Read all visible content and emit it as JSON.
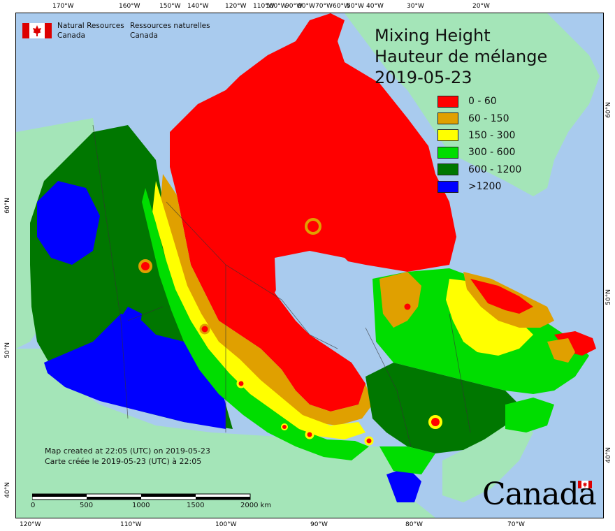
{
  "map": {
    "title_en": "Mixing Height",
    "title_fr": "Hauteur de mélange",
    "date": "2019-05-23",
    "legend": [
      {
        "label": "0 - 60",
        "color": "#ff0000"
      },
      {
        "label": "60 - 150",
        "color": "#e0a000"
      },
      {
        "label": "150 - 300",
        "color": "#ffff00"
      },
      {
        "label": "300 - 600",
        "color": "#00dd00"
      },
      {
        "label": "600 - 1200",
        "color": "#007700"
      },
      {
        "label": ">1200",
        "color": "#0000ff"
      }
    ],
    "org_en_line1": "Natural Resources",
    "org_en_line2": "Canada",
    "org_fr_line1": "Ressources naturelles",
    "org_fr_line2": "Canada",
    "created_en": "Map created at 22:05 (UTC) on 2019-05-23",
    "created_fr": "Carte créée le 2019-05-23 (UTC) à 22:05",
    "scale_labels": [
      "0",
      "500",
      "1000",
      "1500",
      "2000 km"
    ],
    "wordmark": "Canada",
    "top_ticks": [
      "170°W",
      "160°W",
      "150°W",
      "140°W",
      "120°W",
      "110°W",
      "100°W",
      "90°W",
      "80°W",
      "70°W",
      "60°W",
      "50°W",
      "40°W",
      "30°W",
      "20°W"
    ],
    "bottom_ticks": [
      "120°W",
      "110°W",
      "100°W",
      "90°W",
      "80°W",
      "70°W"
    ],
    "left_ticks": [
      "60°N",
      "50°N",
      "40°N"
    ],
    "right_ticks": [
      "60°N",
      "50°N",
      "40°N"
    ],
    "colors": {
      "water": "#a9cbee",
      "land_outside": "#a4e5b8",
      "frame": "#000000"
    }
  }
}
